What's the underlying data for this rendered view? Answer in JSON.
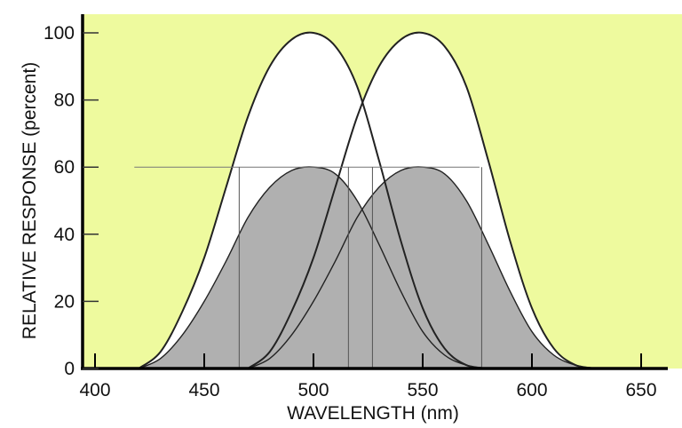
{
  "chart_data": {
    "type": "area",
    "title": "",
    "xlabel": "WAVELENGTH  (nm)",
    "ylabel": "RELATIVE RESPONSE  (percent)",
    "xlim": [
      394,
      662
    ],
    "ylim": [
      0,
      100
    ],
    "xticks": [
      400,
      450,
      500,
      550,
      600,
      650
    ],
    "yticks": [
      0,
      20,
      40,
      60,
      80,
      100
    ],
    "grid": false,
    "background_color": "#eefa9e",
    "x_offsets": [
      -80,
      -70,
      -60,
      -50,
      -40,
      -30,
      -20,
      -10,
      0,
      10,
      20,
      30,
      40,
      50,
      60,
      70,
      80
    ],
    "series": [
      {
        "center": 500,
        "peak": 100,
        "fill": "#ffffff",
        "values": [
          0,
          5,
          17,
          33,
          54,
          75,
          90,
          98,
          100,
          96,
          84,
          62,
          38,
          18,
          6,
          1,
          0
        ]
      },
      {
        "center": 550,
        "peak": 100,
        "fill": "#ffffff",
        "values": [
          0,
          5,
          17,
          33,
          54,
          75,
          90,
          98,
          100,
          96,
          84,
          62,
          38,
          18,
          6,
          1,
          0
        ]
      },
      {
        "center": 500,
        "peak": 60,
        "fill": "#b0b0b0",
        "values": [
          0,
          3,
          10,
          20,
          32,
          45,
          54,
          59,
          60,
          58,
          50,
          37,
          23,
          11,
          4,
          1,
          0
        ]
      },
      {
        "center": 550,
        "peak": 60,
        "fill": "#b0b0b0",
        "values": [
          0,
          3,
          10,
          20,
          32,
          45,
          54,
          59,
          60,
          58,
          50,
          37,
          23,
          11,
          4,
          1,
          0
        ]
      }
    ],
    "reference_level": 60,
    "reference_range": [
      418,
      576
    ],
    "reference_wavelengths": [
      466,
      516,
      527,
      577
    ]
  }
}
